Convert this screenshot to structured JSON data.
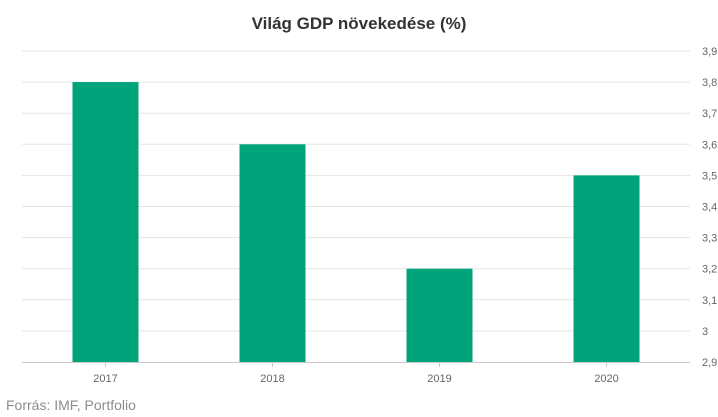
{
  "chart_data": {
    "type": "bar",
    "title": "Világ GDP növekedése (%)",
    "categories": [
      "2017",
      "2018",
      "2019",
      "2020"
    ],
    "series": [
      {
        "values": [
          3.8,
          3.6,
          3.2,
          3.5
        ]
      }
    ],
    "ylim": [
      2.9,
      3.9
    ],
    "yticks": [
      "2,9",
      "3",
      "3,1",
      "3,2",
      "3,3",
      "3,4",
      "3,5",
      "3,6",
      "3,7",
      "3,8",
      "3,9"
    ],
    "ytick_values": [
      2.9,
      3.0,
      3.1,
      3.2,
      3.3,
      3.4,
      3.5,
      3.6,
      3.7,
      3.8,
      3.9
    ],
    "y_axis_side": "right",
    "grid": true,
    "bar_color": "#00a37a",
    "grid_color": "#e5e5e5",
    "axis_color": "#c8c8c8",
    "tick_label_color": "#666666"
  },
  "source": "Forrás: IMF, Portfolio"
}
